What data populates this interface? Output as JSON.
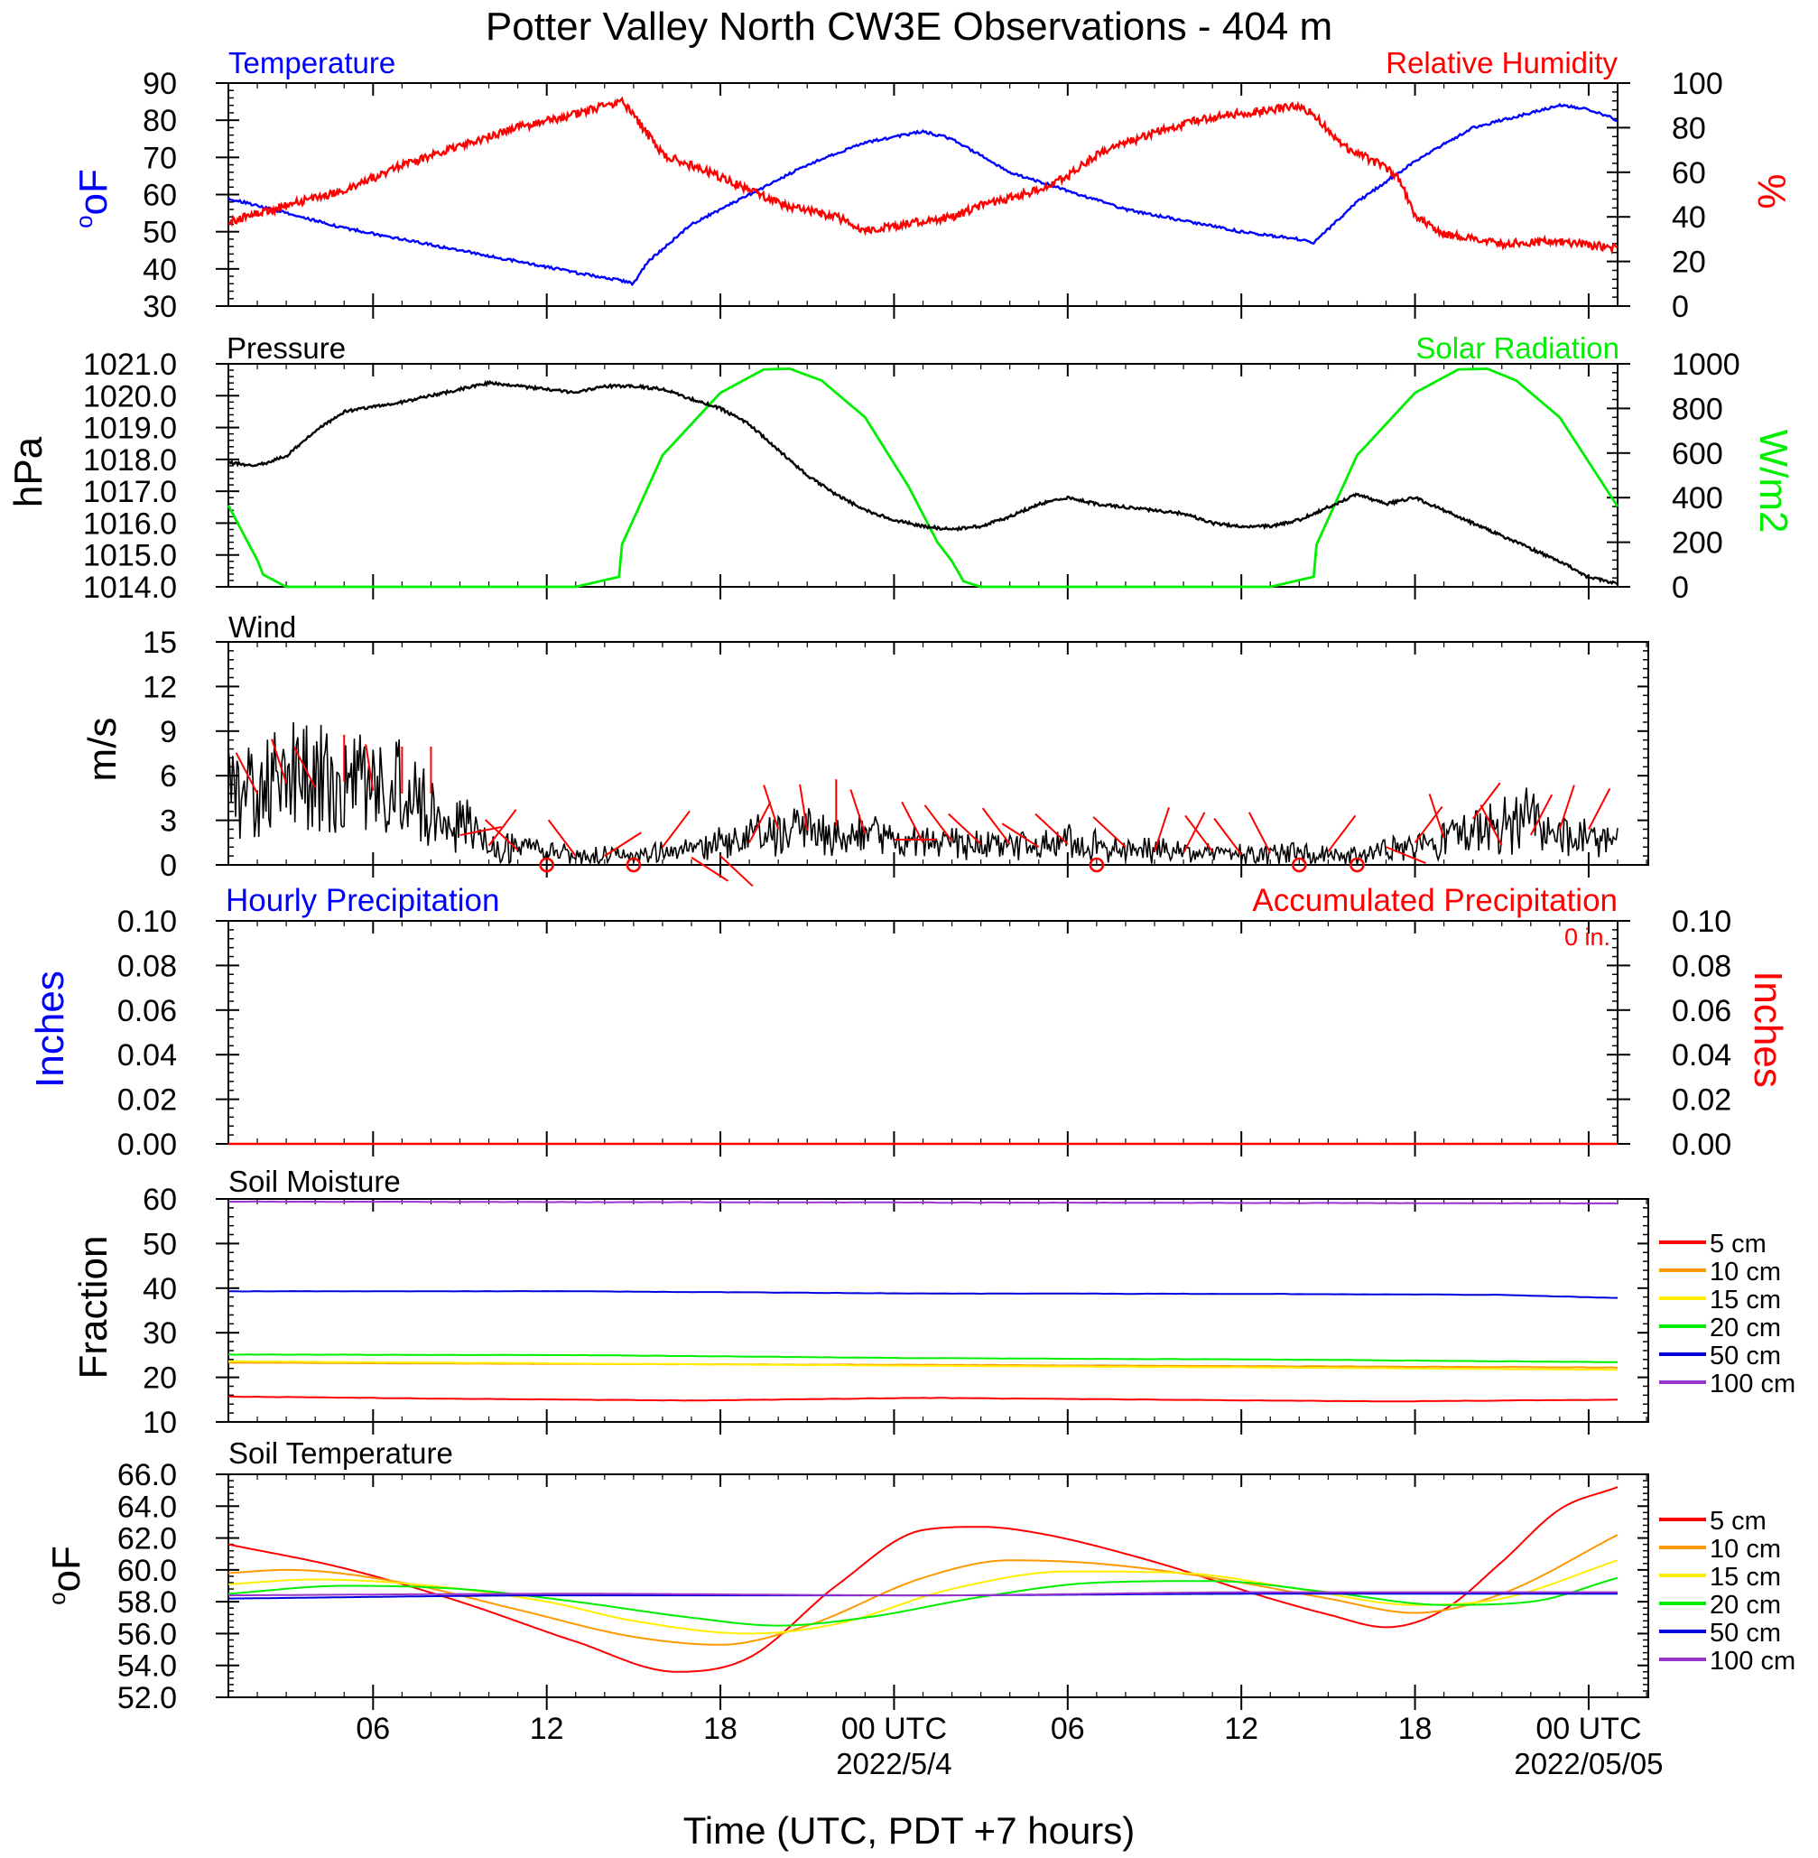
{
  "title": "Potter Valley North CW3E Observations - 404 m",
  "xaxis": {
    "label": "Time (UTC, PDT +7 hours)",
    "ticks": [
      {
        "h": 5,
        "label": "06",
        "sub": ""
      },
      {
        "h": 11,
        "label": "12",
        "sub": ""
      },
      {
        "h": 17,
        "label": "18",
        "sub": ""
      },
      {
        "h": 23,
        "label": "00 UTC",
        "sub": "2022/5/4"
      },
      {
        "h": 29,
        "label": "06",
        "sub": ""
      },
      {
        "h": 35,
        "label": "12",
        "sub": ""
      },
      {
        "h": 41,
        "label": "18",
        "sub": ""
      },
      {
        "h": 47,
        "label": "00 UTC",
        "sub": "2022/05/05"
      }
    ]
  },
  "panels": {
    "temp_rh": {
      "left_title": "Temperature",
      "right_title": "Relative Humidity",
      "left_unit": "oF",
      "right_unit": "%"
    },
    "pressure": {
      "left_title": "Pressure",
      "right_title": "Solar Radiation",
      "left_unit": "hPa",
      "right_unit": "W/m2"
    },
    "wind": {
      "left_title": "Wind",
      "left_unit": "m/s"
    },
    "precip": {
      "left_title": "Hourly Precipitation",
      "right_title": "Accumulated Precipitation",
      "left_unit": "Inches",
      "right_unit": "Inches",
      "accum_text": "0 in."
    },
    "soil_moisture": {
      "left_title": "Soil Moisture",
      "left_unit": "Fraction"
    },
    "soil_temp": {
      "left_title": "Soil Temperature",
      "left_unit": "oF"
    }
  },
  "colors": {
    "temperature": "#0000ff",
    "humidity": "#ff0000",
    "pressure": "#000000",
    "solar": "#00ee00",
    "wind": "#000000",
    "barb": "#ff0000"
  },
  "chart_data": [
    {
      "type": "line",
      "x_unit": "hours",
      "x_range": [
        0,
        48
      ],
      "ylim_left": [
        30,
        90
      ],
      "ylim_right": [
        0,
        100
      ],
      "yticks_left": [
        "30",
        "40",
        "50",
        "60",
        "70",
        "80",
        "90"
      ],
      "yticks_right": [
        "0",
        "20",
        "40",
        "60",
        "80",
        "100"
      ],
      "series": [
        {
          "name": "Temperature",
          "axis": "left",
          "x": [
            0,
            2,
            4,
            6,
            8,
            10,
            12,
            13.5,
            14,
            14.5,
            16,
            18,
            20,
            22,
            24,
            25,
            27,
            29,
            31,
            33,
            35,
            37,
            37.5,
            39,
            41,
            43,
            45,
            46,
            47,
            48
          ],
          "y": [
            59,
            55,
            51,
            48,
            45,
            42,
            39,
            37,
            36,
            42,
            52,
            60,
            68,
            74,
            77,
            75,
            66,
            61,
            56,
            53,
            50,
            48,
            47,
            58,
            69,
            78,
            82,
            84,
            83,
            80
          ]
        },
        {
          "name": "Relative Humidity",
          "axis": "right",
          "x": [
            0,
            2,
            4,
            6,
            8,
            10,
            12,
            13,
            13.6,
            14.2,
            15,
            17,
            19,
            21,
            22,
            24,
            25,
            26,
            28,
            29,
            30,
            32,
            34,
            36,
            37,
            37.5,
            38.5,
            40,
            40.5,
            41,
            42,
            44,
            46,
            48
          ],
          "y": [
            38,
            45,
            52,
            63,
            72,
            80,
            86,
            90,
            92,
            82,
            68,
            58,
            46,
            40,
            34,
            38,
            40,
            45,
            52,
            58,
            68,
            78,
            85,
            88,
            90,
            86,
            72,
            62,
            56,
            40,
            32,
            28,
            29,
            26
          ]
        }
      ]
    },
    {
      "type": "line",
      "x_unit": "hours",
      "x_range": [
        0,
        48
      ],
      "ylim_left": [
        1014,
        1021
      ],
      "ylim_right": [
        0,
        1000
      ],
      "yticks_left": [
        "1014.0",
        "1015.0",
        "1016.0",
        "1017.0",
        "1018.0",
        "1019.0",
        "1020.0",
        "1021.0"
      ],
      "yticks_right": [
        "0",
        "200",
        "400",
        "600",
        "800",
        "1000"
      ],
      "series": [
        {
          "name": "Pressure",
          "axis": "left",
          "x": [
            0,
            1,
            2,
            3,
            4,
            6,
            8,
            9,
            10,
            12,
            13,
            14,
            15,
            16,
            17,
            18,
            19,
            20,
            21,
            22,
            23,
            24,
            25,
            26,
            27,
            28,
            29,
            30,
            31,
            32,
            33,
            34,
            35,
            36,
            37,
            38,
            39,
            40,
            41,
            42,
            43,
            44,
            45,
            46,
            47,
            48
          ],
          "y": [
            1017.9,
            1017.8,
            1018.1,
            1018.9,
            1019.5,
            1019.8,
            1020.2,
            1020.4,
            1020.3,
            1020.1,
            1020.3,
            1020.3,
            1020.2,
            1019.9,
            1019.6,
            1019.1,
            1018.3,
            1017.5,
            1016.9,
            1016.4,
            1016.1,
            1015.9,
            1015.8,
            1015.9,
            1016.2,
            1016.6,
            1016.8,
            1016.6,
            1016.5,
            1016.4,
            1016.3,
            1016.0,
            1015.9,
            1015.9,
            1016.1,
            1016.5,
            1016.9,
            1016.6,
            1016.8,
            1016.4,
            1016.0,
            1015.6,
            1015.2,
            1014.8,
            1014.3,
            1014.1
          ]
        },
        {
          "name": "Solar Radiation",
          "axis": "right",
          "x": [
            0,
            1,
            1.2,
            2,
            12,
            13.5,
            13.6,
            15,
            17,
            18.5,
            19.4,
            20.5,
            22,
            23.5,
            24.5,
            25,
            25.4,
            26,
            36,
            37.5,
            37.6,
            39,
            41,
            42.5,
            43.5,
            44.5,
            46,
            48
          ],
          "y": [
            365,
            120,
            55,
            0,
            0,
            45,
            190,
            590,
            870,
            975,
            978,
            925,
            760,
            450,
            200,
            115,
            25,
            0,
            0,
            45,
            190,
            590,
            870,
            975,
            978,
            925,
            760,
            360
          ]
        }
      ]
    },
    {
      "type": "line",
      "x_unit": "hours",
      "x_range": [
        0,
        49
      ],
      "ylim_left": [
        0,
        15
      ],
      "yticks_left": [
        "0",
        "3",
        "6",
        "9",
        "12",
        "15"
      ],
      "series": [
        {
          "name": "Wind",
          "axis": "left",
          "x": [
            0,
            1,
            2,
            3,
            4,
            5,
            6,
            7,
            7.5,
            8,
            9,
            10,
            11,
            12,
            13,
            14,
            15,
            16,
            17,
            18,
            19,
            20,
            21,
            22,
            23,
            24,
            25,
            26,
            27,
            28,
            29,
            30,
            31,
            32,
            33,
            34,
            35,
            36,
            37,
            38,
            39,
            40,
            41,
            42,
            43,
            44,
            45,
            46,
            47,
            48
          ],
          "y": [
            5,
            4.7,
            5.8,
            5.5,
            5.8,
            5,
            5.3,
            3.5,
            2,
            3.2,
            1.2,
            1.1,
            0.8,
            0.7,
            0.6,
            0.5,
            0.8,
            1,
            1.5,
            1.8,
            2.2,
            2.5,
            2.2,
            2,
            1.7,
            1.5,
            1.4,
            1.3,
            1.3,
            1.4,
            1.5,
            1.2,
            1,
            1,
            0.9,
            0.9,
            0.8,
            0.7,
            0.8,
            0.7,
            0.6,
            1,
            1.2,
            1.6,
            2.2,
            2.8,
            3,
            2.2,
            1.8,
            1.6
          ]
        }
      ],
      "barbs": {
        "x": [
          1,
          2,
          3,
          4,
          5,
          6,
          7,
          8,
          9,
          10,
          11,
          12,
          13,
          14,
          15,
          16,
          17,
          18,
          19,
          20,
          21,
          22,
          23,
          24,
          25,
          26,
          27,
          28,
          29,
          30,
          31,
          32,
          33,
          34,
          35,
          36,
          37,
          38,
          39,
          40,
          41,
          42,
          43,
          44,
          45,
          46,
          47
        ],
        "y": [
          4.8,
          5.5,
          5.2,
          5.6,
          5,
          4.8,
          4.8,
          2,
          1.3,
          1,
          0,
          0.6,
          0.6,
          0,
          1.2,
          0.5,
          0.6,
          1.5,
          2.4,
          2.3,
          2.6,
          2.1,
          1.7,
          1.5,
          1.6,
          1.4,
          1.4,
          1.2,
          1.4,
          0,
          1.2,
          0.9,
          0.8,
          0.9,
          0.7,
          0.8,
          0,
          0.9,
          0,
          1.2,
          1.5,
          1.8,
          3.1,
          1.3,
          2,
          2.4,
          2.4
        ],
        "angle_deg": [
          -30,
          -20,
          -30,
          0,
          -10,
          0,
          0,
          80,
          40,
          -50,
          0,
          -40,
          60,
          0,
          40,
          120,
          130,
          30,
          -20,
          -10,
          0,
          -20,
          90,
          -30,
          -40,
          -50,
          -40,
          -60,
          -50,
          0,
          -50,
          20,
          30,
          -40,
          -40,
          -30,
          0,
          40,
          0,
          110,
          40,
          -20,
          40,
          -30,
          30,
          20,
          30
        ]
      }
    },
    {
      "type": "line",
      "x_unit": "hours",
      "x_range": [
        0,
        48
      ],
      "ylim_left": [
        0,
        0.1
      ],
      "ylim_right": [
        0,
        0.1
      ],
      "yticks_left": [
        "0.00",
        "0.02",
        "0.04",
        "0.06",
        "0.08",
        "0.10"
      ],
      "yticks_right": [
        "0.00",
        "0.02",
        "0.04",
        "0.06",
        "0.08",
        "0.10"
      ],
      "series": [
        {
          "name": "Hourly Precipitation",
          "axis": "left",
          "x": [
            0,
            48
          ],
          "y": [
            0,
            0
          ]
        },
        {
          "name": "Accumulated Precipitation",
          "axis": "right",
          "x": [
            0,
            48
          ],
          "y": [
            0,
            0
          ]
        }
      ]
    },
    {
      "type": "line",
      "x_unit": "hours",
      "x_range": [
        0,
        48
      ],
      "ylim_left": [
        10,
        60
      ],
      "yticks_left": [
        "10",
        "20",
        "30",
        "40",
        "50",
        "60"
      ],
      "legend": {
        "placement": "right"
      },
      "series": [
        {
          "name": "5 cm",
          "color": "#ff0000",
          "x": [
            0,
            8,
            16,
            24,
            32,
            40,
            48
          ],
          "y": [
            15.7,
            15.2,
            14.8,
            15.4,
            15,
            14.6,
            15
          ]
        },
        {
          "name": "10 cm",
          "color": "#ff9900",
          "x": [
            0,
            12,
            24,
            36,
            48
          ],
          "y": [
            23.3,
            23,
            22.8,
            22.5,
            22.2
          ]
        },
        {
          "name": "15 cm",
          "color": "#ffee00",
          "x": [
            0,
            12,
            24,
            36,
            48
          ],
          "y": [
            23.6,
            23.1,
            22.6,
            22.2,
            21.7
          ]
        },
        {
          "name": "20 cm",
          "color": "#00ee00",
          "x": [
            0,
            12,
            24,
            36,
            48
          ],
          "y": [
            25.1,
            25,
            24.3,
            24,
            23.4
          ]
        },
        {
          "name": "50 cm",
          "color": "#0000dd",
          "x": [
            0,
            12,
            24,
            36,
            44,
            48
          ],
          "y": [
            39.3,
            39.3,
            38.8,
            38.7,
            38.5,
            37.8
          ]
        },
        {
          "name": "100 cm",
          "color": "#9933cc",
          "x": [
            0,
            48
          ],
          "y": [
            59.4,
            59
          ]
        }
      ]
    },
    {
      "type": "line",
      "x_unit": "hours",
      "x_range": [
        0,
        48
      ],
      "ylim_left": [
        52,
        66
      ],
      "yticks_left": [
        "52.0",
        "54.0",
        "56.0",
        "58.0",
        "60.0",
        "62.0",
        "64.0",
        "66.0"
      ],
      "legend": {
        "placement": "right"
      },
      "series": [
        {
          "name": "5 cm",
          "color": "#ff0000",
          "x": [
            0,
            4,
            8,
            12,
            15.5,
            18,
            21,
            24,
            26,
            28,
            32,
            36,
            38,
            40,
            42,
            44,
            46,
            48
          ],
          "y": [
            61.6,
            60.1,
            58,
            55.5,
            53.6,
            54.5,
            59,
            62.5,
            62.7,
            62.3,
            60.5,
            58.2,
            57.2,
            56.4,
            57.5,
            60.5,
            63.8,
            65.2
          ]
        },
        {
          "name": "10 cm",
          "color": "#ff9900",
          "x": [
            0,
            2,
            6,
            10,
            14,
            17,
            20,
            24,
            27,
            30,
            34,
            38,
            41,
            44,
            48
          ],
          "y": [
            59.8,
            60,
            59.2,
            57.5,
            55.8,
            55.3,
            56.5,
            59.5,
            60.6,
            60.4,
            59.5,
            58.2,
            57.3,
            58.5,
            62.2
          ]
        },
        {
          "name": "15 cm",
          "color": "#ffee00",
          "x": [
            0,
            3,
            7,
            11,
            14,
            18,
            21,
            25,
            29,
            33,
            37,
            41,
            44,
            48
          ],
          "y": [
            59.1,
            59.4,
            59,
            58,
            56.8,
            56,
            56.6,
            58.8,
            59.9,
            59.8,
            58.8,
            57.8,
            58.2,
            60.6
          ]
        },
        {
          "name": "20 cm",
          "color": "#00ee00",
          "x": [
            0,
            4,
            8,
            12,
            16,
            19,
            22,
            26,
            30,
            34,
            38,
            42,
            45,
            48
          ],
          "y": [
            58.5,
            59,
            58.8,
            58,
            57,
            56.5,
            57,
            58.3,
            59.2,
            59.3,
            58.6,
            57.8,
            58,
            59.5
          ]
        },
        {
          "name": "50 cm",
          "color": "#0000dd",
          "x": [
            0,
            12,
            24,
            36,
            48
          ],
          "y": [
            58.2,
            58.4,
            58.4,
            58.5,
            58.5
          ]
        },
        {
          "name": "100 cm",
          "color": "#9933cc",
          "x": [
            0,
            12,
            24,
            36,
            48
          ],
          "y": [
            58.4,
            58.5,
            58.4,
            58.6,
            58.6
          ]
        }
      ]
    }
  ]
}
